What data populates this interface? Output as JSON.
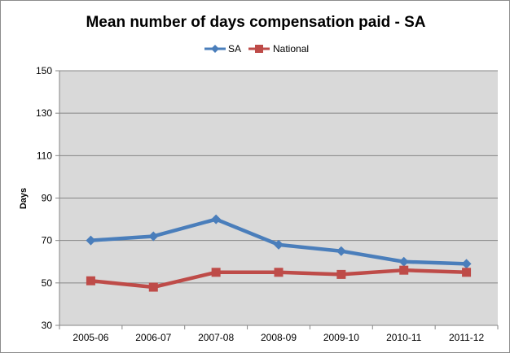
{
  "chart_data": {
    "type": "line",
    "title": "Mean number of days compensation paid - SA",
    "xlabel": "",
    "ylabel": "Days",
    "categories": [
      "2005-06",
      "2006-07",
      "2007-08",
      "2008-09",
      "2009-10",
      "2010-11",
      "2011-12"
    ],
    "ylim": [
      30,
      150
    ],
    "yticks": [
      30,
      50,
      70,
      90,
      110,
      130,
      150
    ],
    "grid": true,
    "legend_position": "top-center",
    "series": [
      {
        "name": "SA",
        "color": "#4a7ebb",
        "marker": "diamond",
        "values": [
          70,
          72,
          80,
          68,
          65,
          60,
          59
        ]
      },
      {
        "name": "National",
        "color": "#be4b48",
        "marker": "square",
        "values": [
          51,
          48,
          55,
          55,
          54,
          56,
          55
        ]
      }
    ],
    "plot_background": "#d9d9d9"
  }
}
